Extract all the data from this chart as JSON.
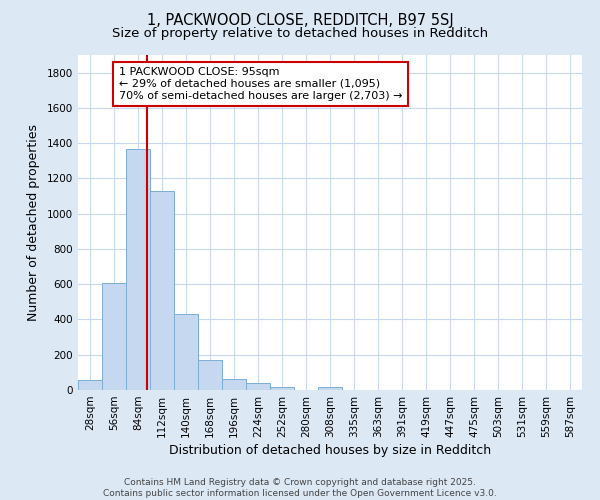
{
  "title1": "1, PACKWOOD CLOSE, REDDITCH, B97 5SJ",
  "title2": "Size of property relative to detached houses in Redditch",
  "xlabel": "Distribution of detached houses by size in Redditch",
  "ylabel": "Number of detached properties",
  "categories": [
    "28sqm",
    "56sqm",
    "84sqm",
    "112sqm",
    "140sqm",
    "168sqm",
    "196sqm",
    "224sqm",
    "252sqm",
    "280sqm",
    "308sqm",
    "335sqm",
    "363sqm",
    "391sqm",
    "419sqm",
    "447sqm",
    "475sqm",
    "503sqm",
    "531sqm",
    "559sqm",
    "587sqm"
  ],
  "values": [
    55,
    605,
    1365,
    1130,
    430,
    170,
    65,
    40,
    15,
    0,
    15,
    0,
    0,
    0,
    0,
    0,
    0,
    0,
    0,
    0,
    0
  ],
  "bar_color": "#c5d8f0",
  "bar_edge_color": "#7bafd4",
  "vline_color": "#cc0000",
  "annotation_text": "1 PACKWOOD CLOSE: 95sqm\n← 29% of detached houses are smaller (1,095)\n70% of semi-detached houses are larger (2,703) →",
  "annotation_box_facecolor": "#ffffff",
  "annotation_box_edgecolor": "#cc0000",
  "ylim": [
    0,
    1900
  ],
  "yticks": [
    0,
    200,
    400,
    600,
    800,
    1000,
    1200,
    1400,
    1600,
    1800
  ],
  "plot_bg_color": "#ffffff",
  "fig_bg_color": "#dde8f5",
  "grid_color": "#c8d8ee",
  "footer_text1": "Contains HM Land Registry data © Crown copyright and database right 2025.",
  "footer_text2": "Contains public sector information licensed under the Open Government Licence v3.0.",
  "title1_fontsize": 10.5,
  "title2_fontsize": 9.5,
  "tick_fontsize": 7.5,
  "label_fontsize": 9,
  "annotation_fontsize": 8,
  "footer_fontsize": 6.5
}
